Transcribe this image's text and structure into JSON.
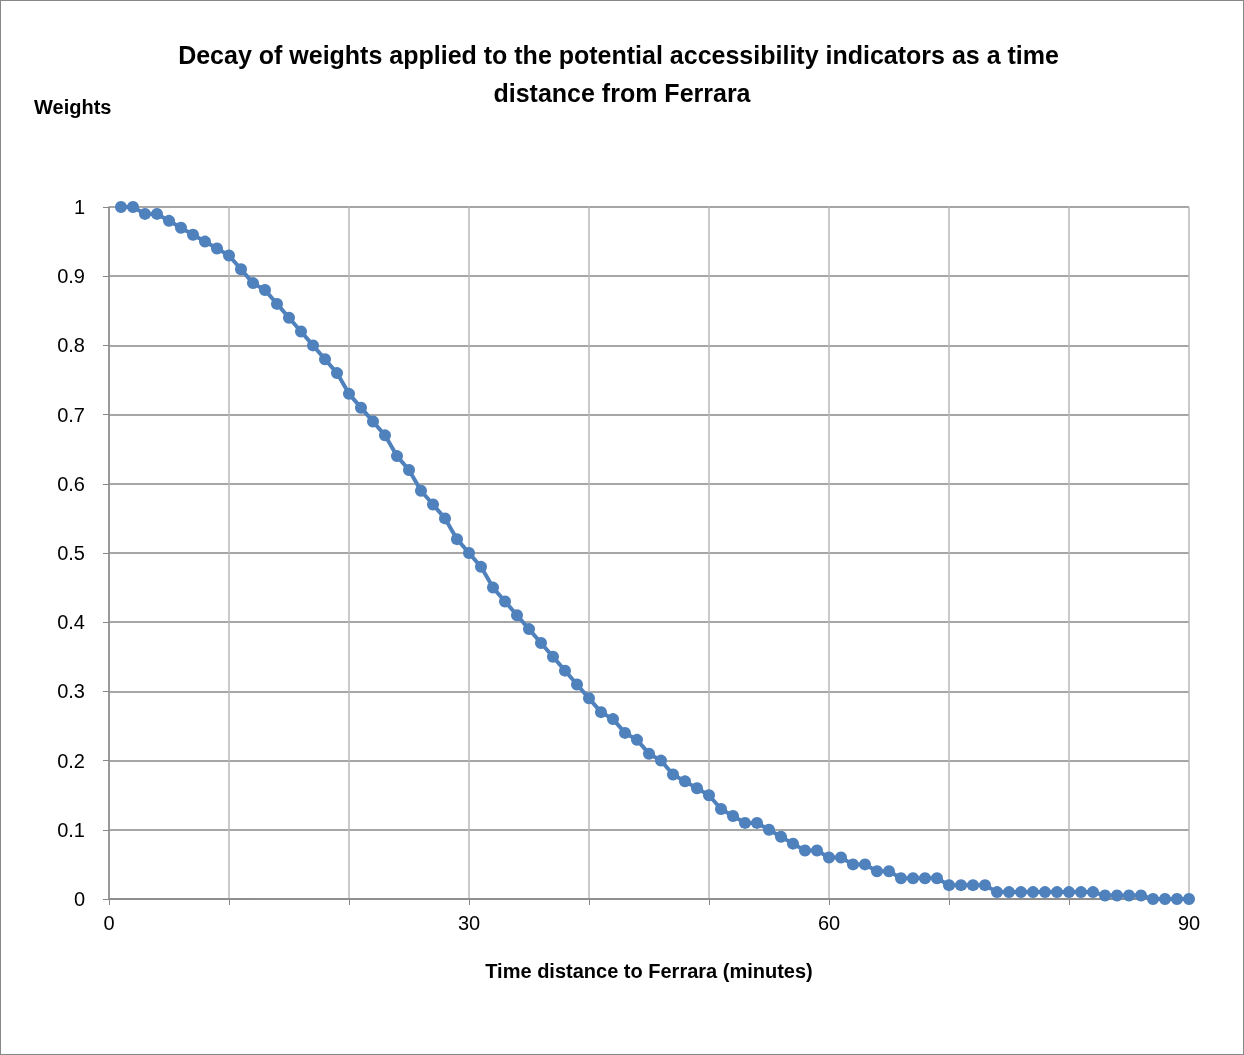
{
  "chart_data": {
    "type": "line",
    "title": "Decay of weights applied to the potential accessibility indicators as a time distance from Ferrara",
    "xlabel": "Time distance to Ferrara (minutes)",
    "ylabel": "Weights",
    "x": [
      1,
      2,
      3,
      4,
      5,
      6,
      7,
      8,
      9,
      10,
      11,
      12,
      13,
      14,
      15,
      16,
      17,
      18,
      19,
      20,
      21,
      22,
      23,
      24,
      25,
      26,
      27,
      28,
      29,
      30,
      31,
      32,
      33,
      34,
      35,
      36,
      37,
      38,
      39,
      40,
      41,
      42,
      43,
      44,
      45,
      46,
      47,
      48,
      49,
      50,
      51,
      52,
      53,
      54,
      55,
      56,
      57,
      58,
      59,
      60,
      61,
      62,
      63,
      64,
      65,
      66,
      67,
      68,
      69,
      70,
      71,
      72,
      73,
      74,
      75,
      76,
      77,
      78,
      79,
      80,
      81,
      82,
      83,
      84,
      85,
      86,
      87,
      88,
      89,
      90
    ],
    "series": [
      {
        "color": "#4f81bd",
        "values": [
          1,
          1,
          0.99,
          0.99,
          0.98,
          0.97,
          0.96,
          0.95,
          0.94,
          0.93,
          0.91,
          0.89,
          0.88,
          0.86,
          0.84,
          0.82,
          0.8,
          0.78,
          0.76,
          0.73,
          0.71,
          0.69,
          0.67,
          0.64,
          0.62,
          0.59,
          0.57,
          0.55,
          0.52,
          0.5,
          0.48,
          0.45,
          0.43,
          0.41,
          0.39,
          0.37,
          0.35,
          0.33,
          0.31,
          0.29,
          0.27,
          0.26,
          0.24,
          0.23,
          0.21,
          0.2,
          0.18,
          0.17,
          0.16,
          0.15,
          0.13,
          0.12,
          0.11,
          0.11,
          0.1,
          0.09,
          0.08,
          0.07,
          0.07,
          0.06,
          0.06,
          0.05,
          0.05,
          0.04,
          0.04,
          0.03,
          0.03,
          0.03,
          0.03,
          0.02,
          0.02,
          0.02,
          0.02,
          0.01,
          0.01,
          0.01,
          0.01,
          0.01,
          0.01,
          0.01,
          0.01,
          0.01,
          0.005,
          0.005,
          0.005,
          0.005,
          0,
          0,
          0,
          0
        ]
      }
    ],
    "xlim": [
      0,
      90
    ],
    "xticks": [
      0,
      {
        "value": 10,
        "label": null
      },
      {
        "value": 20,
        "label": null
      },
      30,
      {
        "value": 40,
        "label": null
      },
      {
        "value": 50,
        "label": null
      },
      60,
      {
        "value": 70,
        "label": null
      },
      {
        "value": 80,
        "label": null
      },
      90
    ],
    "ylim": [
      0,
      1
    ],
    "yticks": [
      0,
      0.1,
      0.2,
      0.3,
      0.4,
      0.5,
      0.6,
      0.7,
      0.8,
      0.9,
      1
    ],
    "grid": true,
    "marker": "circle",
    "line_style": "solid"
  }
}
